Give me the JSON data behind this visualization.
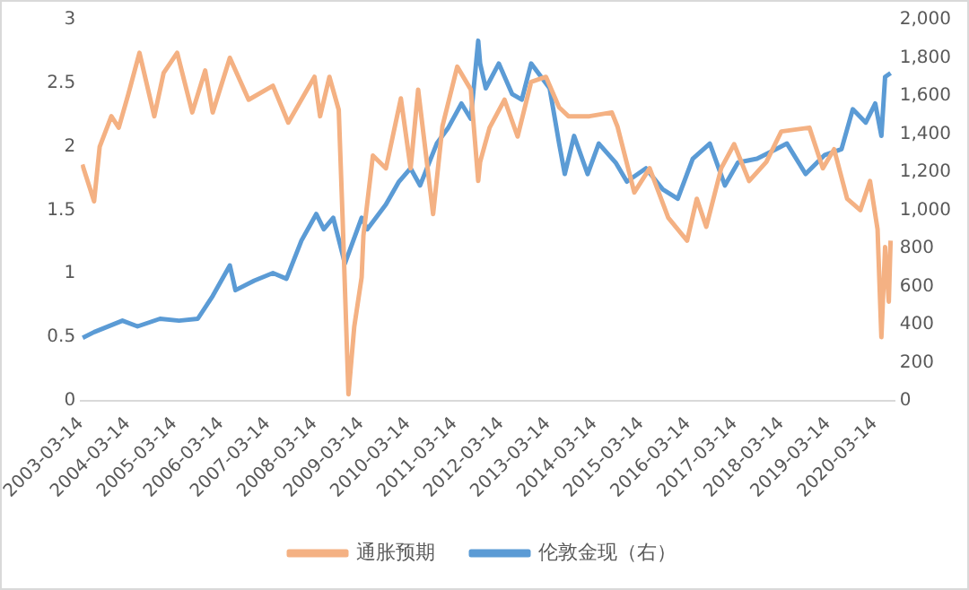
{
  "chart_data": {
    "type": "line",
    "xlim": [
      "2003-03-14",
      "2020-08-14"
    ],
    "xticks": [
      "2003-03-14",
      "2004-03-14",
      "2005-03-14",
      "2006-03-14",
      "2007-03-14",
      "2008-03-14",
      "2009-03-14",
      "2010-03-14",
      "2011-03-14",
      "2012-03-14",
      "2013-03-14",
      "2014-03-14",
      "2015-03-14",
      "2016-03-14",
      "2017-03-14",
      "2018-03-14",
      "2019-03-14",
      "2020-03-14"
    ],
    "ylim": [
      0,
      3
    ],
    "yticks": [
      0,
      0.5,
      1,
      1.5,
      2,
      2.5,
      3
    ],
    "y2lim": [
      0,
      2000
    ],
    "y2ticks": [
      {
        "value": 0,
        "label": "0"
      },
      {
        "value": 200,
        "label": "200"
      },
      {
        "value": 400,
        "label": "400"
      },
      {
        "value": 600,
        "label": "600"
      },
      {
        "value": 800,
        "label": "800"
      },
      {
        "value": 1000,
        "label": "1,000"
      },
      {
        "value": 1200,
        "label": "1,200"
      },
      {
        "value": 1400,
        "label": "1,400"
      },
      {
        "value": 1600,
        "label": "1,600"
      },
      {
        "value": 1800,
        "label": "1,800"
      },
      {
        "value": 2000,
        "label": "2,000"
      }
    ],
    "grid": false,
    "legend": "bottom",
    "marker": "none",
    "line_style": "solid",
    "series": [
      {
        "name": "通胀预期",
        "color": "#f4b183",
        "x": [
          "2003-03-25",
          "2003-06-25",
          "2003-08-08",
          "2003-11-07",
          "2004-01-04",
          "2004-03-18",
          "2004-06-14",
          "2004-10-08",
          "2004-12-20",
          "2005-04-05",
          "2005-08-01",
          "2005-11-10",
          "2006-01-08",
          "2006-05-22",
          "2006-10-16",
          "2007-04-24",
          "2007-08-22",
          "2008-03-14",
          "2008-04-27",
          "2008-07-09",
          "2008-09-20",
          "2008-10-20",
          "2008-12-05",
          "2009-01-19",
          "2009-03-18",
          "2009-04-01",
          "2009-06-14",
          "2009-09-24",
          "2010-01-19",
          "2010-04-05",
          "2010-06-03",
          "2010-09-28",
          "2010-12-10",
          "2011-04-05",
          "2011-07-20",
          "2011-09-16",
          "2011-10-01",
          "2011-12-14",
          "2012-04-09",
          "2012-07-20",
          "2012-11-03",
          "2013-02-27",
          "2013-06-10",
          "2013-08-22",
          "2014-02-02",
          "2014-07-27",
          "2014-09-09",
          "2015-01-19",
          "2015-05-19",
          "2015-10-12",
          "2016-03-07",
          "2016-05-22",
          "2016-08-04",
          "2016-11-29",
          "2017-03-10",
          "2017-07-05",
          "2017-11-17",
          "2018-03-14",
          "2018-10-20",
          "2019-02-02",
          "2019-05-01",
          "2019-08-11",
          "2019-11-22",
          "2020-02-06",
          "2020-04-05",
          "2020-05-05",
          "2020-06-03",
          "2020-07-02",
          "2020-07-16"
        ],
        "values": [
          1.86,
          1.57,
          2.0,
          2.24,
          2.15,
          2.41,
          2.74,
          2.24,
          2.58,
          2.74,
          2.27,
          2.6,
          2.27,
          2.7,
          2.37,
          2.48,
          2.19,
          2.55,
          2.24,
          2.55,
          2.29,
          1.44,
          0.05,
          0.58,
          0.97,
          1.3,
          1.93,
          1.83,
          2.38,
          1.83,
          2.45,
          1.47,
          2.16,
          2.63,
          2.45,
          1.73,
          1.88,
          2.15,
          2.37,
          2.08,
          2.51,
          2.55,
          2.31,
          2.24,
          2.24,
          2.27,
          2.16,
          1.64,
          1.83,
          1.44,
          1.26,
          1.59,
          1.37,
          1.83,
          2.02,
          1.73,
          1.88,
          2.12,
          2.15,
          1.83,
          1.98,
          1.59,
          1.5,
          1.73,
          1.35,
          0.5,
          1.21,
          0.78,
          1.26
        ]
      },
      {
        "name": "伦敦金现（右）",
        "color": "#5b9bd5",
        "axis": "y2",
        "x": [
          "2003-03-28",
          "2003-06-25",
          "2004-02-02",
          "2004-05-30",
          "2004-11-22",
          "2005-04-20",
          "2005-09-13",
          "2006-01-08",
          "2006-05-22",
          "2006-07-05",
          "2006-11-29",
          "2007-04-24",
          "2007-08-08",
          "2007-12-03",
          "2008-03-28",
          "2008-05-26",
          "2008-08-08",
          "2008-11-07",
          "2009-03-18",
          "2009-05-01",
          "2009-09-24",
          "2010-01-04",
          "2010-04-05",
          "2010-06-18",
          "2010-10-27",
          "2011-01-22",
          "2011-05-08",
          "2011-07-20",
          "2011-09-16",
          "2011-10-01",
          "2011-11-14",
          "2012-02-24",
          "2012-06-07",
          "2012-08-22",
          "2012-11-03",
          "2013-03-28",
          "2013-06-10",
          "2013-07-24",
          "2013-10-05",
          "2014-01-19",
          "2014-04-16",
          "2014-08-26",
          "2014-11-22",
          "2015-04-20",
          "2015-08-29",
          "2015-12-25",
          "2016-04-20",
          "2016-09-01",
          "2016-12-28",
          "2017-04-09",
          "2017-09-05",
          "2018-01-30",
          "2018-04-27",
          "2018-09-20",
          "2019-02-17",
          "2019-06-28",
          "2019-09-24",
          "2020-01-04",
          "2020-03-18",
          "2020-05-05",
          "2020-06-03",
          "2020-07-16"
        ],
        "values": [
          330,
          360,
          420,
          390,
          430,
          420,
          430,
          550,
          710,
          580,
          630,
          670,
          640,
          840,
          980,
          900,
          960,
          720,
          960,
          900,
          1030,
          1150,
          1220,
          1130,
          1350,
          1430,
          1560,
          1480,
          1890,
          1770,
          1640,
          1770,
          1610,
          1580,
          1770,
          1640,
          1350,
          1190,
          1390,
          1190,
          1350,
          1250,
          1150,
          1220,
          1110,
          1060,
          1270,
          1350,
          1130,
          1250,
          1270,
          1320,
          1350,
          1190,
          1290,
          1320,
          1530,
          1460,
          1560,
          1390,
          1700,
          1720
        ]
      }
    ]
  }
}
